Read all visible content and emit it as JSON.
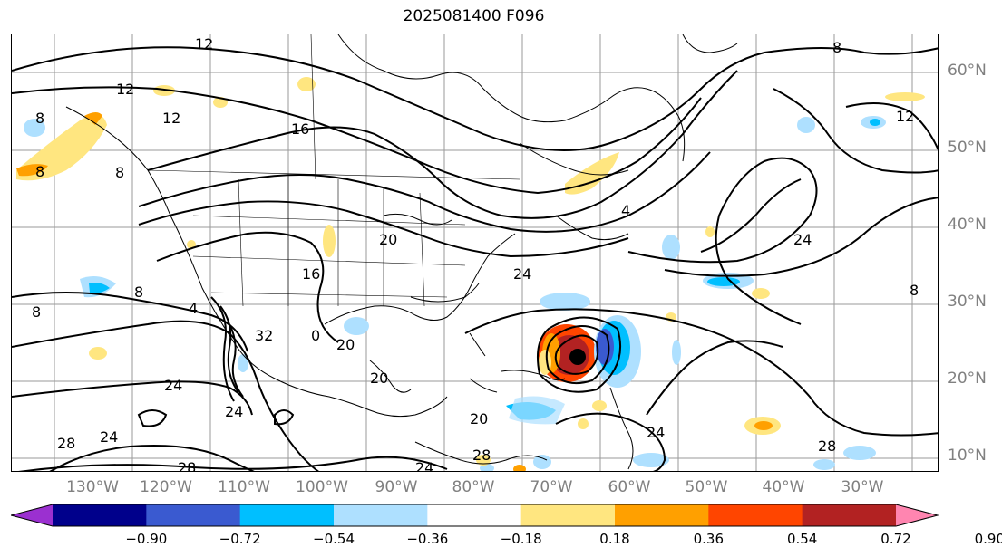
{
  "title": "2025081400 F096",
  "lat_labels": [
    "60°N",
    "50°N",
    "40°N",
    "30°N",
    "20°N",
    "10°N"
  ],
  "lon_labels": [
    "130°W",
    "120°W",
    "110°W",
    "100°W",
    "90°W",
    "80°W",
    "70°W",
    "60°W",
    "50°W",
    "40°W",
    "30°W"
  ],
  "colorbar": {
    "ticks": [
      "−0.90",
      "−0.72",
      "−0.54",
      "−0.36",
      "−0.18",
      "0.18",
      "0.36",
      "0.54",
      "0.72",
      "0.90"
    ],
    "colors": [
      "#9b30d0",
      "#00008b",
      "#3a5ad0",
      "#00bfff",
      "#aee0ff",
      "#ffffff",
      "#ffe680",
      "#ffa000",
      "#ff4500",
      "#b22222",
      "#ff85b0"
    ]
  },
  "contour_labels": [
    "12",
    "12",
    "12",
    "12",
    "8",
    "8",
    "8",
    "8",
    "8",
    "8",
    "8",
    "16",
    "20",
    "20",
    "20",
    "24",
    "24",
    "24",
    "24",
    "24",
    "24",
    "28",
    "28",
    "28",
    "28",
    "32",
    "4",
    "4",
    "0",
    "16",
    "20",
    "24"
  ],
  "storm_marker": "hurricane center"
}
